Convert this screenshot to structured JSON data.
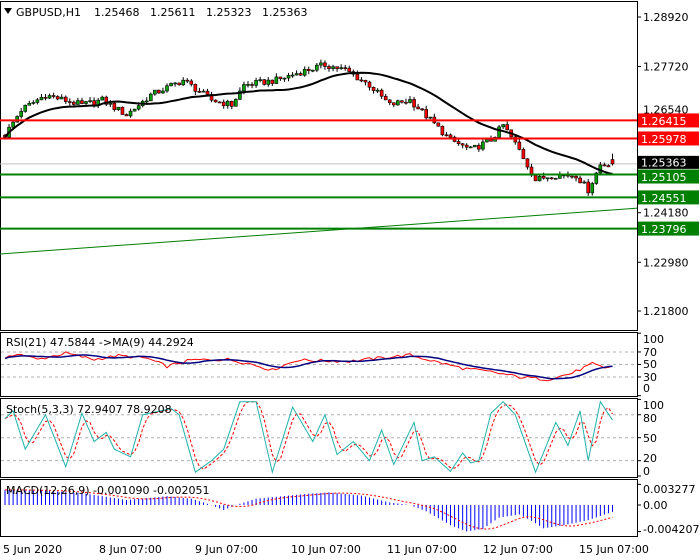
{
  "chart_data": [
    {
      "type": "candlestick",
      "title": "GBPUSD,H1",
      "symbol": "GBPUSD",
      "timeframe": "H1",
      "ohlc_last": {
        "open": "1.25468",
        "high": "1.25611",
        "low": "1.25323",
        "close": "1.25363"
      },
      "ylim": [
        1.218,
        1.2892
      ],
      "y_ticks": [
        "1.28920",
        "1.27720",
        "1.26540",
        "1.24180",
        "1.22980",
        "1.21800"
      ],
      "x_ticks": [
        "5 Jun 2020",
        "8 Jun 07:00",
        "9 Jun 07:00",
        "10 Jun 07:00",
        "11 Jun 07:00",
        "12 Jun 07:00",
        "15 Jun 07:00"
      ],
      "bars": 151,
      "close_path": [
        [
          0,
          1.2606
        ],
        [
          4,
          1.2667
        ],
        [
          10,
          1.2703
        ],
        [
          19,
          1.2679
        ],
        [
          24,
          1.2691
        ],
        [
          30,
          1.2655
        ],
        [
          36,
          1.2703
        ],
        [
          44,
          1.2739
        ],
        [
          51,
          1.2691
        ],
        [
          56,
          1.2679
        ],
        [
          59,
          1.2727
        ],
        [
          67,
          1.2739
        ],
        [
          73,
          1.2759
        ],
        [
          79,
          1.2776
        ],
        [
          84,
          1.2764
        ],
        [
          90,
          1.2727
        ],
        [
          95,
          1.2679
        ],
        [
          100,
          1.2691
        ],
        [
          105,
          1.2643
        ],
        [
          110,
          1.2594
        ],
        [
          115,
          1.257
        ],
        [
          120,
          1.2594
        ],
        [
          123,
          1.263
        ],
        [
          127,
          1.257
        ],
        [
          131,
          1.2497
        ],
        [
          135,
          1.2509
        ],
        [
          141,
          1.2509
        ],
        [
          144,
          1.2473
        ],
        [
          147,
          1.2534
        ],
        [
          150,
          1.25363
        ]
      ],
      "moving_average_period": 24,
      "current_price": {
        "value": 1.25363,
        "label": "1.25363"
      },
      "resistance_levels": [
        {
          "value": 1.26415,
          "label": "1.26415"
        },
        {
          "value": 1.25978,
          "label": "1.25978"
        }
      ],
      "support_levels": [
        {
          "value": 1.25105,
          "label": "1.25105"
        },
        {
          "value": 1.24551,
          "label": "1.24551"
        },
        {
          "value": 1.23796,
          "label": "1.23796"
        }
      ],
      "trendline": {
        "start": [
          0,
          1.2318
        ],
        "end": [
          150,
          1.2429
        ]
      },
      "colors": {
        "bull": "#00a000",
        "bear": "#ff0000",
        "resistance": "#ff0000",
        "support": "#008000",
        "ma": "#000000",
        "current": "#c0c0c0"
      }
    },
    {
      "type": "line",
      "title": "RSI(21) 47.5844  ->MA(9) 44.2924",
      "ylim": [
        0,
        100
      ],
      "levels": [
        70,
        50,
        30
      ],
      "y_ticks": [
        "100",
        "70",
        "50",
        "30",
        "0"
      ],
      "rsi_path": [
        [
          0,
          58
        ],
        [
          3,
          68
        ],
        [
          8,
          58
        ],
        [
          15,
          68
        ],
        [
          22,
          58
        ],
        [
          28,
          64
        ],
        [
          35,
          60
        ],
        [
          40,
          47
        ],
        [
          46,
          57
        ],
        [
          55,
          58
        ],
        [
          60,
          52
        ],
        [
          66,
          41
        ],
        [
          72,
          57
        ],
        [
          85,
          55
        ],
        [
          95,
          62
        ],
        [
          100,
          65
        ],
        [
          106,
          55
        ],
        [
          113,
          44
        ],
        [
          120,
          38
        ],
        [
          127,
          30
        ],
        [
          134,
          26
        ],
        [
          140,
          36
        ],
        [
          145,
          51
        ],
        [
          148,
          44
        ],
        [
          150,
          47.58
        ]
      ],
      "ma_period": 9,
      "colors": {
        "rsi": "#ff0000",
        "ma": "#000080"
      }
    },
    {
      "type": "line",
      "title": "Stoch(5,3,3) 72.9407 78.9208",
      "ylim": [
        0,
        100
      ],
      "levels": [
        80,
        50,
        20
      ],
      "y_ticks": [
        "100",
        "80",
        "50",
        "20",
        "0"
      ],
      "main_path": [
        [
          0,
          75
        ],
        [
          2,
          85
        ],
        [
          5,
          35
        ],
        [
          10,
          80
        ],
        [
          15,
          12
        ],
        [
          19,
          82
        ],
        [
          22,
          45
        ],
        [
          25,
          57
        ],
        [
          27,
          35
        ],
        [
          31,
          25
        ],
        [
          34,
          80
        ],
        [
          41,
          88
        ],
        [
          43,
          80
        ],
        [
          47,
          5
        ],
        [
          51,
          20
        ],
        [
          54,
          35
        ],
        [
          58,
          97
        ],
        [
          62,
          97
        ],
        [
          66,
          5
        ],
        [
          71,
          90
        ],
        [
          76,
          45
        ],
        [
          79,
          80
        ],
        [
          82,
          28
        ],
        [
          86,
          45
        ],
        [
          90,
          20
        ],
        [
          93,
          60
        ],
        [
          96,
          15
        ],
        [
          101,
          70
        ],
        [
          103,
          20
        ],
        [
          106,
          25
        ],
        [
          110,
          6
        ],
        [
          113,
          30
        ],
        [
          115,
          17
        ],
        [
          117,
          20
        ],
        [
          120,
          82
        ],
        [
          123,
          97
        ],
        [
          126,
          80
        ],
        [
          131,
          5
        ],
        [
          136,
          70
        ],
        [
          139,
          40
        ],
        [
          142,
          85
        ],
        [
          144,
          20
        ],
        [
          147,
          97
        ],
        [
          150,
          72.94
        ]
      ],
      "signal_period": 3,
      "colors": {
        "main": "#20b2aa",
        "signal": "#ff0000"
      }
    },
    {
      "type": "bar",
      "title": "MACD(12,26,9) -0.001090 -0.002051",
      "units": "0.001",
      "ylim": [
        -4.3,
        3.277
      ],
      "y_ticks": [
        "0.003277",
        "0.00",
        "-0.004207"
      ],
      "hist_path": [
        [
          0,
          2.4
        ],
        [
          10,
          2.3
        ],
        [
          20,
          1.8
        ],
        [
          30,
          0.8
        ],
        [
          40,
          1.4
        ],
        [
          46,
          1.0
        ],
        [
          50,
          0.2
        ],
        [
          54,
          -0.8
        ],
        [
          58,
          0.2
        ],
        [
          62,
          1.0
        ],
        [
          75,
          1.8
        ],
        [
          80,
          2.0
        ],
        [
          88,
          1.5
        ],
        [
          95,
          0.4
        ],
        [
          100,
          0
        ],
        [
          104,
          -1.0
        ],
        [
          110,
          -3.2
        ],
        [
          114,
          -4.2
        ],
        [
          118,
          -3.8
        ],
        [
          122,
          -2.0
        ],
        [
          127,
          -1.5
        ],
        [
          130,
          -2.5
        ],
        [
          133,
          -3.7
        ],
        [
          138,
          -3.2
        ],
        [
          144,
          -2.4
        ],
        [
          150,
          -1.09
        ]
      ],
      "signal_period": 9,
      "colors": {
        "hist": "#0000ff",
        "signal": "#ff0000"
      }
    }
  ]
}
